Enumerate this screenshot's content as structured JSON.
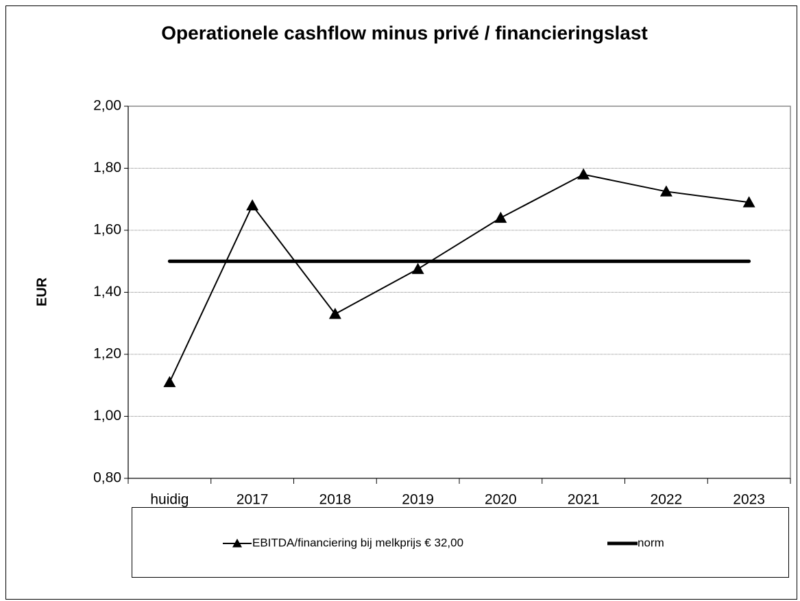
{
  "chart_data": {
    "type": "line",
    "title": "Operationele cashflow minus privé / financieringslast",
    "y_label": "EUR",
    "categories": [
      "huidig",
      "2017",
      "2018",
      "2019",
      "2020",
      "2021",
      "2022",
      "2023"
    ],
    "series": [
      {
        "name": "EBITDA/financiering bij melkprijs € 32,00",
        "color": "#000000",
        "marker": "triangle",
        "values": [
          1.11,
          1.68,
          1.33,
          1.475,
          1.64,
          1.78,
          1.725,
          1.69
        ]
      },
      {
        "name": "norm",
        "color": "#000000",
        "values": [
          1.5,
          1.5,
          1.5,
          1.5,
          1.5,
          1.5,
          1.5,
          1.5
        ]
      }
    ],
    "ylim": [
      0.8,
      2.0
    ],
    "yticks": [
      {
        "value": 0.8,
        "label": "0,80"
      },
      {
        "value": 1.0,
        "label": "1,00"
      },
      {
        "value": 1.2,
        "label": "1,20"
      },
      {
        "value": 1.4,
        "label": "1,40"
      },
      {
        "value": 1.6,
        "label": "1,60"
      },
      {
        "value": 1.8,
        "label": "1,80"
      },
      {
        "value": 2.0,
        "label": "2,00"
      }
    ],
    "grid": true,
    "legend": "bottom"
  }
}
